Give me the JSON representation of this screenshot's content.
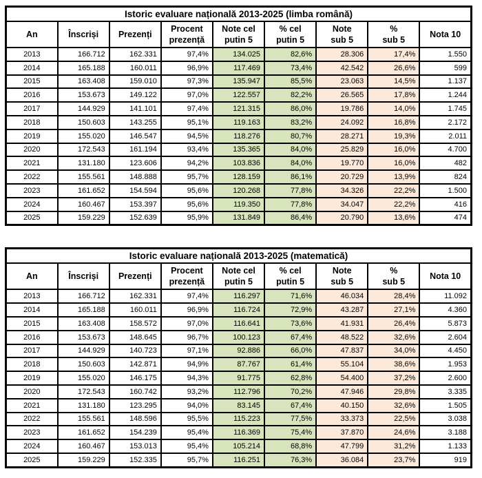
{
  "colors": {
    "green_fill": "#d8e4bc",
    "peach_fill": "#fde9d9",
    "border": "#000000",
    "background": "#ffffff"
  },
  "column_fills": [
    "none",
    "none",
    "none",
    "none",
    "green",
    "green",
    "peach",
    "peach",
    "none"
  ],
  "chart_data": [
    {
      "type": "table",
      "title": "Istoric evaluare națională 2013-2025 (limba română)",
      "columns": [
        "An",
        "Înscriși",
        "Prezenți",
        "Procent\nprezență",
        "Note cel\nputin 5",
        "% cel\nputin 5",
        "Note\nsub 5",
        "%\nsub 5",
        "Nota 10"
      ],
      "column_keys": [
        "an",
        "inscrisi",
        "prezenti",
        "procent-prezenta",
        "note-cel-putin-5",
        "pct-cel-putin-5",
        "note-sub-5",
        "pct-sub-5",
        "nota-10"
      ],
      "rows": [
        [
          "2013",
          "166.712",
          "162.331",
          "97,4%",
          "134.025",
          "82,6%",
          "28.306",
          "17,4%",
          "1.550"
        ],
        [
          "2014",
          "165.188",
          "160.011",
          "96,9%",
          "117.469",
          "73,4%",
          "42.542",
          "26,6%",
          "599"
        ],
        [
          "2015",
          "163.408",
          "159.010",
          "97,3%",
          "135.947",
          "85,5%",
          "23.063",
          "14,5%",
          "1.137"
        ],
        [
          "2016",
          "153.673",
          "149.122",
          "97,0%",
          "122.557",
          "82,2%",
          "26.565",
          "17,8%",
          "1.244"
        ],
        [
          "2017",
          "144.929",
          "141.101",
          "97,4%",
          "121.315",
          "86,0%",
          "19.786",
          "14,0%",
          "1.745"
        ],
        [
          "2018",
          "150.603",
          "143.255",
          "95,1%",
          "119.163",
          "83,2%",
          "24.092",
          "16,8%",
          "2.172"
        ],
        [
          "2019",
          "155.020",
          "146.547",
          "94,5%",
          "118.276",
          "80,7%",
          "28.271",
          "19,3%",
          "2.011"
        ],
        [
          "2020",
          "172.543",
          "161.194",
          "93,4%",
          "135.365",
          "84,0%",
          "25.829",
          "16,0%",
          "4.700"
        ],
        [
          "2021",
          "131.180",
          "123.606",
          "94,2%",
          "103.836",
          "84,0%",
          "19.770",
          "16,0%",
          "482"
        ],
        [
          "2022",
          "155.561",
          "148.888",
          "95,7%",
          "128.159",
          "86,1%",
          "20.729",
          "13,9%",
          "824"
        ],
        [
          "2023",
          "161.652",
          "154.594",
          "95,6%",
          "120.268",
          "77,8%",
          "34.326",
          "22,2%",
          "1.500"
        ],
        [
          "2024",
          "160.467",
          "153.397",
          "95,6%",
          "119.350",
          "77,8%",
          "34.047",
          "22,2%",
          "416"
        ],
        [
          "2025",
          "159.229",
          "152.639",
          "95,9%",
          "131.849",
          "86,4%",
          "20.790",
          "13,6%",
          "474"
        ]
      ]
    },
    {
      "type": "table",
      "title": "Istoric evaluare națională 2013-2025 (matematică)",
      "columns": [
        "An",
        "Înscriși",
        "Prezenți",
        "Procent\nprezență",
        "Note cel\nputin 5",
        "% cel\nputin 5",
        "Note\nsub 5",
        "%\nsub 5",
        "Nota 10"
      ],
      "column_keys": [
        "an",
        "inscrisi",
        "prezenti",
        "procent-prezenta",
        "note-cel-putin-5",
        "pct-cel-putin-5",
        "note-sub-5",
        "pct-sub-5",
        "nota-10"
      ],
      "rows": [
        [
          "2013",
          "166.712",
          "162.331",
          "97,4%",
          "116.297",
          "71,6%",
          "46.034",
          "28,4%",
          "11.092"
        ],
        [
          "2014",
          "165.188",
          "160.011",
          "96,9%",
          "116.724",
          "72,9%",
          "43.287",
          "27,1%",
          "4.360"
        ],
        [
          "2015",
          "163.408",
          "158.572",
          "97,0%",
          "116.641",
          "73,6%",
          "41.931",
          "26,4%",
          "5.873"
        ],
        [
          "2016",
          "153.673",
          "148.645",
          "96,7%",
          "100.123",
          "67,4%",
          "48.522",
          "32,6%",
          "2.604"
        ],
        [
          "2017",
          "144.929",
          "140.723",
          "97,1%",
          "92.886",
          "66,0%",
          "47.837",
          "34,0%",
          "4.450"
        ],
        [
          "2018",
          "150.603",
          "142.871",
          "94,9%",
          "87.767",
          "61,4%",
          "55.104",
          "38,6%",
          "1.953"
        ],
        [
          "2019",
          "155.020",
          "146.175",
          "94,3%",
          "91.775",
          "62,8%",
          "54.400",
          "37,2%",
          "2.600"
        ],
        [
          "2020",
          "172.543",
          "160.742",
          "93,2%",
          "112.796",
          "70,2%",
          "47.946",
          "29,8%",
          "3.335"
        ],
        [
          "2021",
          "131.180",
          "123.295",
          "94,0%",
          "83.145",
          "67,4%",
          "40.150",
          "32,6%",
          "1.505"
        ],
        [
          "2022",
          "155.561",
          "148.596",
          "95,5%",
          "115.223",
          "77,5%",
          "33.373",
          "22,5%",
          "3.038"
        ],
        [
          "2023",
          "161.652",
          "154.239",
          "95,4%",
          "116.369",
          "75,4%",
          "37.870",
          "24,6%",
          "3.188"
        ],
        [
          "2024",
          "160.467",
          "153.013",
          "95,4%",
          "105.214",
          "68,8%",
          "47.799",
          "31,2%",
          "1.133"
        ],
        [
          "2025",
          "159.229",
          "152.335",
          "95,7%",
          "116.251",
          "76,3%",
          "36.084",
          "23,7%",
          "919"
        ]
      ]
    }
  ]
}
